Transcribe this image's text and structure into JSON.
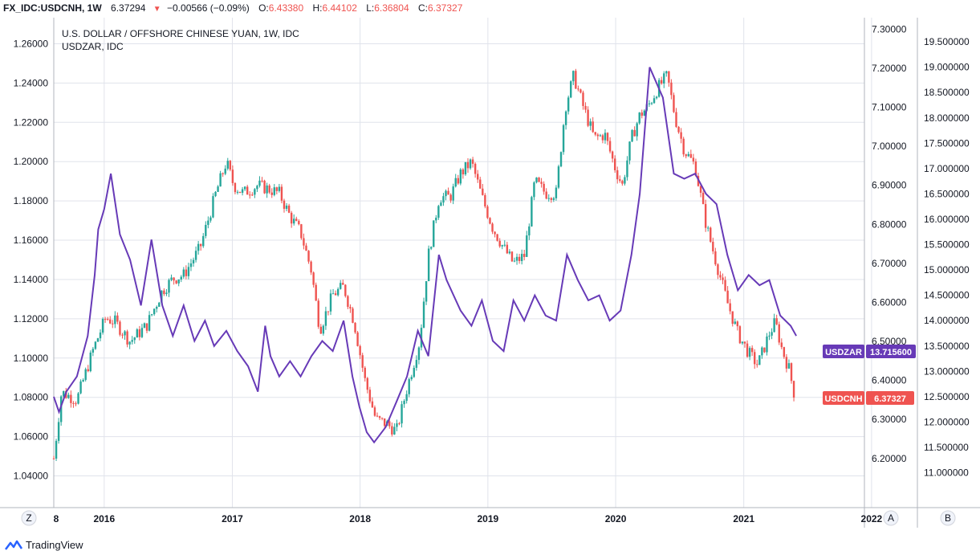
{
  "header": {
    "symbol": "FX_IDC:USDCNH, 1W",
    "last": "6.37294",
    "change": "−0.00566 (−0.09%)",
    "o_label": "O:",
    "o_value": "6.43380",
    "h_label": "H:",
    "h_value": "6.44102",
    "l_label": "L:",
    "l_value": "6.36804",
    "c_label": "C:",
    "c_value": "6.37327"
  },
  "legend": {
    "line1": "U.S. DOLLAR / OFFSHORE CHINESE YUAN, 1W, IDC",
    "line2": "USDZAR, IDC"
  },
  "tags": {
    "zar_name": "USDZAR",
    "zar_value": "13.715600",
    "cnh_name": "USDCNH",
    "cnh_value": "6.37327"
  },
  "axis_buttons": {
    "z": "Z",
    "a": "A",
    "b": "B"
  },
  "footer": {
    "brand": "TradingView"
  },
  "colors": {
    "up": "#26a69a",
    "down": "#ef5350",
    "zar_line": "#673ab7",
    "grid": "#e0e3eb"
  },
  "chart_data": {
    "type": "line",
    "x_axis": {
      "type": "date",
      "range": [
        "2015-08-10",
        "2022-01-15"
      ],
      "tick_labels": [
        "8",
        "2016",
        "2017",
        "2018",
        "2019",
        "2020",
        "2021",
        "2022"
      ],
      "tick_dates": [
        "2015-08-01",
        "2016-01-01",
        "2017-01-01",
        "2018-01-01",
        "2019-01-01",
        "2020-01-01",
        "2021-01-01",
        "2022-01-01"
      ]
    },
    "y_axes": {
      "left": {
        "range": [
          1.03,
          1.27
        ],
        "ticks": [
          "1.04000",
          "1.06000",
          "1.08000",
          "1.10000",
          "1.12000",
          "1.14000",
          "1.16000",
          "1.18000",
          "1.20000",
          "1.22000",
          "1.24000",
          "1.26000"
        ]
      },
      "price": {
        "range": [
          6.105,
          7.313
        ],
        "ticks": [
          "6.20000",
          "6.30000",
          "6.40000",
          "6.50000",
          "6.60000",
          "6.70000",
          "6.80000",
          "6.90000",
          "7.00000",
          "7.10000",
          "7.20000",
          "7.30000"
        ]
      },
      "zar": {
        "range": [
          10.55,
          19.85
        ],
        "ticks": [
          "11.000000",
          "11.500000",
          "12.000000",
          "12.500000",
          "13.000000",
          "13.500000",
          "14.000000",
          "14.500000",
          "15.000000",
          "15.500000",
          "16.000000",
          "16.500000",
          "17.000000",
          "17.500000",
          "18.000000",
          "18.500000",
          "19.000000",
          "19.500000"
        ]
      }
    },
    "series": [
      {
        "name": "USDCNH",
        "kind": "candlestick-weekly-closes",
        "x": [
          "2015-08-10",
          "2015-09-01",
          "2015-10-15",
          "2015-12-01",
          "2016-01-05",
          "2016-02-01",
          "2016-03-15",
          "2016-05-01",
          "2016-06-15",
          "2016-07-15",
          "2016-08-15",
          "2016-10-01",
          "2016-11-15",
          "2016-12-15",
          "2017-01-05",
          "2017-02-01",
          "2017-03-15",
          "2017-04-15",
          "2017-05-15",
          "2017-06-15",
          "2017-07-15",
          "2017-08-15",
          "2017-09-08",
          "2017-10-15",
          "2017-11-15",
          "2017-12-15",
          "2018-01-15",
          "2018-02-15",
          "2018-03-15",
          "2018-04-15",
          "2018-05-15",
          "2018-06-20",
          "2018-07-15",
          "2018-08-15",
          "2018-09-15",
          "2018-10-15",
          "2018-11-15",
          "2018-12-15",
          "2019-01-15",
          "2019-02-15",
          "2019-03-15",
          "2019-04-15",
          "2019-05-15",
          "2019-06-15",
          "2019-07-15",
          "2019-08-10",
          "2019-09-03",
          "2019-10-01",
          "2019-11-01",
          "2019-12-01",
          "2020-01-01",
          "2020-01-20",
          "2020-02-15",
          "2020-03-10",
          "2020-04-01",
          "2020-05-01",
          "2020-05-27",
          "2020-06-20",
          "2020-07-15",
          "2020-08-15",
          "2020-09-15",
          "2020-10-15",
          "2020-11-15",
          "2020-12-15",
          "2021-01-15",
          "2021-02-10",
          "2021-03-15",
          "2021-04-01",
          "2021-04-20",
          "2021-05-10",
          "2021-05-24"
        ],
        "values": [
          6.2,
          6.37,
          6.35,
          6.48,
          6.56,
          6.55,
          6.5,
          6.54,
          6.63,
          6.66,
          6.67,
          6.74,
          6.88,
          6.96,
          6.9,
          6.88,
          6.9,
          6.89,
          6.88,
          6.82,
          6.78,
          6.68,
          6.53,
          6.62,
          6.64,
          6.55,
          6.4,
          6.3,
          6.29,
          6.27,
          6.38,
          6.5,
          6.72,
          6.87,
          6.87,
          6.93,
          6.96,
          6.87,
          6.79,
          6.74,
          6.7,
          6.72,
          6.91,
          6.88,
          6.88,
          7.1,
          7.18,
          7.1,
          7.02,
          7.03,
          6.94,
          6.9,
          7.02,
          7.08,
          7.1,
          7.15,
          7.18,
          7.07,
          6.99,
          6.95,
          6.8,
          6.7,
          6.6,
          6.52,
          6.47,
          6.44,
          6.52,
          6.55,
          6.48,
          6.43,
          6.37
        ]
      },
      {
        "name": "USDZAR",
        "kind": "line",
        "x": [
          "2015-08-10",
          "2015-08-25",
          "2015-09-15",
          "2015-10-15",
          "2015-11-15",
          "2015-12-05",
          "2015-12-15",
          "2016-01-01",
          "2016-01-20",
          "2016-02-15",
          "2016-03-15",
          "2016-04-15",
          "2016-05-15",
          "2016-06-15",
          "2016-07-15",
          "2016-08-15",
          "2016-09-15",
          "2016-10-15",
          "2016-11-10",
          "2016-12-15",
          "2017-01-15",
          "2017-02-15",
          "2017-03-15",
          "2017-04-05",
          "2017-04-20",
          "2017-05-15",
          "2017-06-15",
          "2017-07-15",
          "2017-08-15",
          "2017-09-15",
          "2017-10-15",
          "2017-11-15",
          "2017-12-10",
          "2017-12-30",
          "2018-01-20",
          "2018-02-10",
          "2018-03-15",
          "2018-04-15",
          "2018-05-15",
          "2018-06-15",
          "2018-07-15",
          "2018-08-14",
          "2018-09-05",
          "2018-10-15",
          "2018-11-15",
          "2018-12-15",
          "2019-01-15",
          "2019-02-15",
          "2019-03-15",
          "2019-04-15",
          "2019-05-15",
          "2019-06-15",
          "2019-07-15",
          "2019-08-15",
          "2019-09-15",
          "2019-10-15",
          "2019-11-15",
          "2019-12-15",
          "2020-01-15",
          "2020-02-15",
          "2020-03-10",
          "2020-04-07",
          "2020-05-15",
          "2020-06-15",
          "2020-07-15",
          "2020-08-15",
          "2020-09-15",
          "2020-10-15",
          "2020-11-15",
          "2020-12-15",
          "2021-01-15",
          "2021-02-15",
          "2021-03-15",
          "2021-04-15",
          "2021-05-15",
          "2021-05-31"
        ],
        "values": [
          12.5,
          12.2,
          12.6,
          12.9,
          13.7,
          14.9,
          15.8,
          16.2,
          16.9,
          15.7,
          15.2,
          14.3,
          15.6,
          14.3,
          13.7,
          14.3,
          13.6,
          14.0,
          13.5,
          13.8,
          13.4,
          13.1,
          12.6,
          13.9,
          13.3,
          12.9,
          13.2,
          12.9,
          13.3,
          13.6,
          13.4,
          14.0,
          12.9,
          12.3,
          11.8,
          11.6,
          11.9,
          12.4,
          12.9,
          13.8,
          13.3,
          15.3,
          14.8,
          14.2,
          13.9,
          14.4,
          13.6,
          13.4,
          14.4,
          14.0,
          14.5,
          14.1,
          14.0,
          15.3,
          14.8,
          14.4,
          14.5,
          14.0,
          14.2,
          15.3,
          16.5,
          19.0,
          18.4,
          16.9,
          16.8,
          16.9,
          16.5,
          16.3,
          15.3,
          14.6,
          14.9,
          14.7,
          14.8,
          14.1,
          13.9,
          13.7
        ]
      }
    ]
  }
}
